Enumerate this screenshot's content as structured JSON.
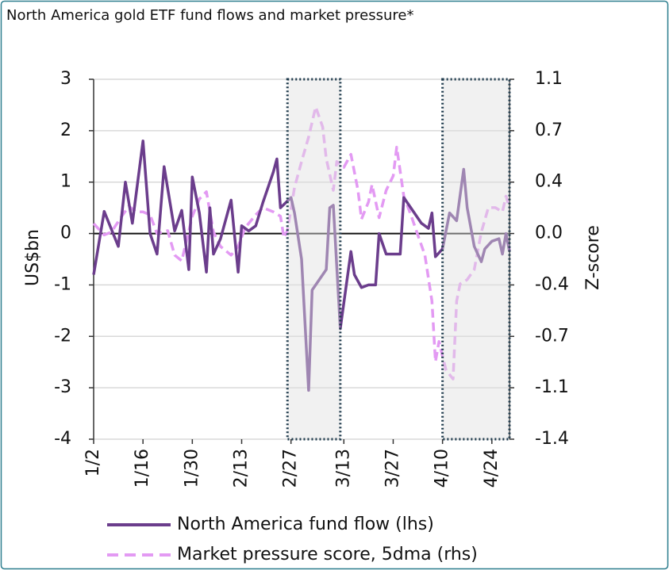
{
  "chart_data": {
    "type": "line",
    "title": "North America gold ETF fund flows and market pressure*",
    "y_label": "US$bn",
    "y2_label": "Z-score",
    "xlim": [
      "1/2",
      "4/29"
    ],
    "xticks": [
      "1/2",
      "1/16",
      "1/30",
      "2/13",
      "2/27",
      "3/13",
      "3/27",
      "4/10",
      "4/24"
    ],
    "ylim": [
      -4,
      3
    ],
    "yticks": [
      -4,
      -3,
      -2,
      -1,
      0,
      1,
      2,
      3
    ],
    "y2lim": [
      -1.4286,
      1.0714
    ],
    "y2ticks": [
      {
        "value": -1.4286,
        "label": "-1.4"
      },
      {
        "value": -1.0714,
        "label": "-1.1"
      },
      {
        "value": -0.7143,
        "label": "-0.7"
      },
      {
        "value": -0.3571,
        "label": "-0.4"
      },
      {
        "value": 0,
        "label": "0.0"
      },
      {
        "value": 0.3571,
        "label": "0.4"
      },
      {
        "value": 0.7143,
        "label": "0.7"
      },
      {
        "value": 1.0714,
        "label": "1.1"
      }
    ],
    "grid": true,
    "shaded_periods": [
      {
        "start": "2/26",
        "end": "3/12"
      },
      {
        "start": "4/10",
        "end": "4/29"
      }
    ],
    "series": [
      {
        "name": "Market pressure score, 5dma (rhs)",
        "color": "#e39af3",
        "line_style": "dashed",
        "axis": "y2",
        "x": [
          "1/2",
          "1/5",
          "1/7",
          "1/10",
          "1/12",
          "1/14",
          "1/16",
          "1/18",
          "1/20",
          "1/23",
          "1/25",
          "1/27",
          "1/30",
          "2/1",
          "2/3",
          "2/5",
          "2/7",
          "2/10",
          "2/12",
          "2/14",
          "2/17",
          "2/19",
          "2/22",
          "2/24",
          "2/25",
          "2/26",
          "2/28",
          "3/1",
          "3/3",
          "3/5",
          "3/7",
          "3/8",
          "3/10",
          "3/11",
          "3/13",
          "3/15",
          "3/17",
          "3/18",
          "3/20",
          "3/21",
          "3/23",
          "3/25",
          "3/27",
          "3/28",
          "3/30",
          "4/1",
          "4/3",
          "4/5",
          "4/7",
          "4/8",
          "4/9",
          "4/10",
          "4/11",
          "4/13",
          "4/14",
          "4/15",
          "4/17",
          "4/19",
          "4/21",
          "4/23",
          "4/25",
          "4/27",
          "4/28",
          "4/29"
        ],
        "values": [
          0.07,
          -0.01,
          0.01,
          0.12,
          0.19,
          0.15,
          0.15,
          0.13,
          0,
          0.02,
          -0.15,
          -0.19,
          0.12,
          0.24,
          0.29,
          0.01,
          -0.09,
          -0.15,
          -0.09,
          0.04,
          0.13,
          0.18,
          0.15,
          0.12,
          -0.03,
          0.02,
          0.32,
          0.5,
          0.67,
          0.88,
          0.74,
          0.52,
          0.3,
          0.5,
          0.46,
          0.55,
          0.3,
          0.1,
          0.22,
          0.34,
          0.11,
          0.3,
          0.4,
          0.6,
          0.26,
          0.13,
          -0.01,
          -0.15,
          -0.47,
          -0.89,
          -0.75,
          -0.85,
          -0.95,
          -1.01,
          -0.47,
          -0.35,
          -0.32,
          -0.25,
          0.01,
          0.18,
          0.18,
          0.15,
          0.26,
          0.18
        ]
      },
      {
        "name": "North America fund flow (lhs)",
        "color": "#6b3d8c",
        "line_style": "solid",
        "axis": "y",
        "x": [
          "1/2",
          "1/5",
          "1/9",
          "1/11",
          "1/13",
          "1/16",
          "1/18",
          "1/20",
          "1/22",
          "1/25",
          "1/27",
          "1/29",
          "1/30",
          "2/1",
          "2/3",
          "2/4",
          "2/5",
          "2/7",
          "2/10",
          "2/12",
          "2/13",
          "2/15",
          "2/17",
          "2/19",
          "2/22",
          "2/23",
          "2/24",
          "2/27",
          "2/28",
          "3/1",
          "3/3",
          "3/4",
          "3/5",
          "3/8",
          "3/9",
          "3/10",
          "3/12",
          "3/15",
          "3/16",
          "3/18",
          "3/20",
          "3/22",
          "3/23",
          "3/24",
          "3/25",
          "3/26",
          "3/29",
          "3/30",
          "4/1",
          "4/4",
          "4/6",
          "4/7",
          "4/8",
          "4/10",
          "4/12",
          "4/14",
          "4/16",
          "4/17",
          "4/19",
          "4/21",
          "4/22",
          "4/24",
          "4/26",
          "4/27",
          "4/28",
          "4/29"
        ],
        "values": [
          -0.8,
          0.43,
          -0.25,
          1.0,
          0.2,
          1.8,
          0,
          -0.4,
          1.3,
          0.05,
          0.45,
          -0.7,
          1.1,
          0.4,
          -0.75,
          0.5,
          -0.4,
          -0.1,
          0.65,
          -0.75,
          0.15,
          0.05,
          0.15,
          0.6,
          1.2,
          1.45,
          0.5,
          0.7,
          0.4,
          -0.5,
          -3.05,
          -1.1,
          -1.0,
          -0.7,
          0.5,
          0.55,
          -1.85,
          -0.35,
          -0.8,
          -1.05,
          -1.0,
          -1.0,
          0,
          -0.2,
          -0.4,
          -0.4,
          -0.4,
          0.7,
          0.5,
          0.2,
          0.1,
          0.4,
          -0.45,
          -0.3,
          0.4,
          0.25,
          1.25,
          0.5,
          -0.25,
          -0.55,
          -0.3,
          -0.15,
          -0.1,
          -0.4,
          0,
          -0.35
        ]
      }
    ]
  }
}
